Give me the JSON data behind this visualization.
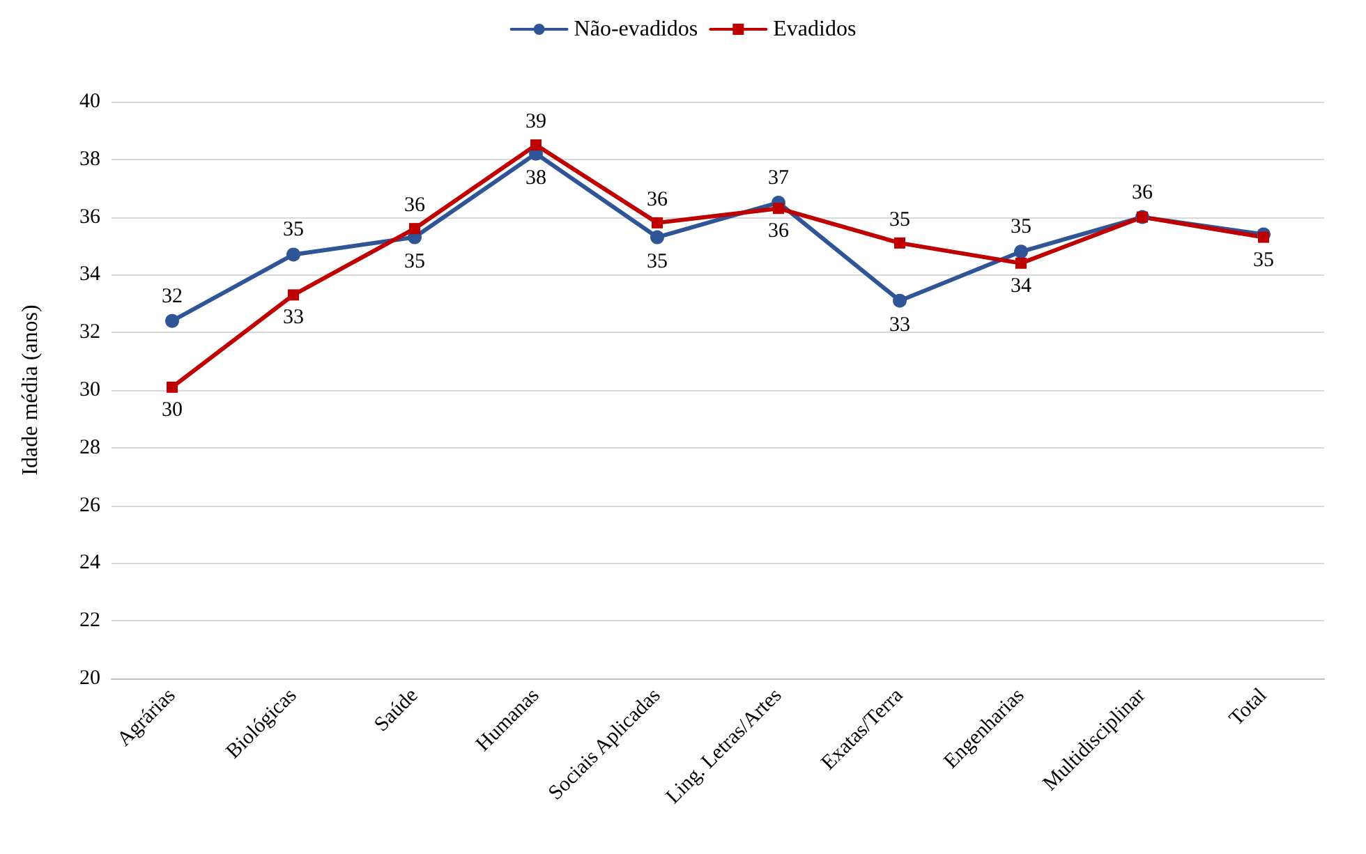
{
  "chart_data": {
    "type": "line",
    "ylabel": "Idade média (anos)",
    "categories": [
      "Agrárias",
      "Biológicas",
      "Saúde",
      "Humanas",
      "Sociais Aplicadas",
      "Ling. Letras/Artes",
      "Exatas/Terra",
      "Engenharias",
      "Multidisciplinar",
      "Total"
    ],
    "series": [
      {
        "name": "Não-evadidos",
        "color": "#2f5597",
        "marker": "circle",
        "values": [
          32.4,
          34.7,
          35.3,
          38.2,
          35.3,
          36.5,
          33.1,
          34.8,
          36.0,
          35.4
        ],
        "value_labels": [
          "32",
          "35",
          "35",
          "38",
          "35",
          "37",
          "33",
          "35",
          "36",
          null
        ]
      },
      {
        "name": "Evadidos",
        "color": "#c00000",
        "marker": "square",
        "values": [
          30.1,
          33.3,
          35.6,
          38.5,
          35.8,
          36.3,
          35.1,
          34.4,
          36.0,
          35.3
        ],
        "value_labels": [
          "30",
          "33",
          "36",
          "39",
          "36",
          "36",
          "35",
          "34",
          null,
          "35"
        ]
      }
    ],
    "ylim": [
      20,
      40
    ],
    "yticks": [
      20,
      22,
      24,
      26,
      28,
      30,
      32,
      34,
      36,
      38,
      40
    ],
    "grid": "y",
    "legend": "top",
    "line_style": "solid"
  }
}
